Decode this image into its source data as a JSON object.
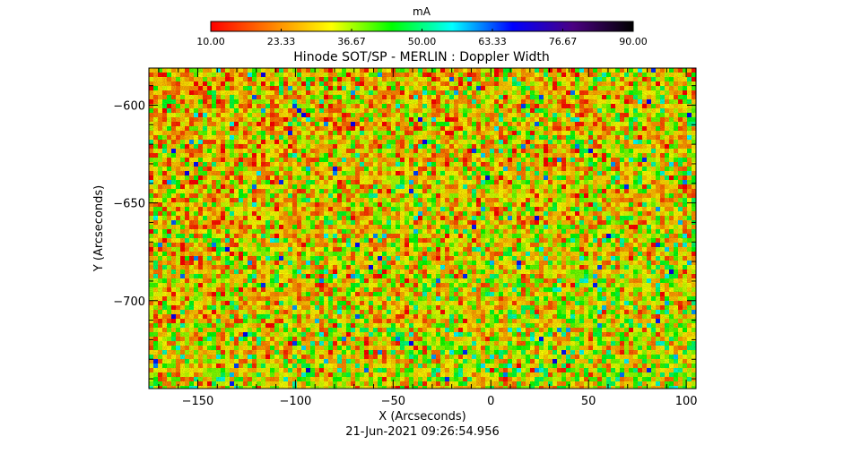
{
  "chart_data": {
    "type": "heatmap",
    "title": "Hinode SOT/SP - MERLIN : Doppler Width",
    "xlabel": "X (Arcseconds)",
    "ylabel": "Y (Arcseconds)",
    "xlim": [
      -175,
      105
    ],
    "ylim": [
      -745,
      -581
    ],
    "x_ticks": [
      -150,
      -100,
      -50,
      0,
      50,
      100
    ],
    "y_ticks": [
      -600,
      -650,
      -700
    ],
    "colorbar": {
      "label": "mA",
      "range": [
        10.0,
        90.0
      ],
      "ticks": [
        "10.00",
        "23.33",
        "36.67",
        "50.00",
        "63.33",
        "76.67",
        "90.00"
      ],
      "colormap": [
        "#ff0000",
        "#ff8000",
        "#ffff00",
        "#00ff00",
        "#00ffff",
        "#0000ff",
        "#4b0082",
        "#000000"
      ]
    },
    "value_distribution": {
      "mean": 30,
      "typical_range": [
        15,
        50
      ]
    },
    "timestamp": "21-Jun-2021 09:26:54.956"
  }
}
